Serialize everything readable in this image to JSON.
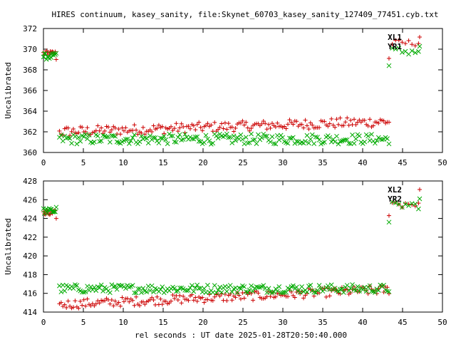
{
  "title": "HIRES continuum, kasey_sanity, file:Skynet_60703_kasey_sanity_127409_77451.cyb.txt",
  "xlabel": "rel seconds : UT date 2025-01-28T20:50:40.000",
  "colors": {
    "red": "#cc0000",
    "green": "#00aa00"
  },
  "chart_data": [
    {
      "type": "scatter",
      "title": "",
      "xlabel": "",
      "ylabel": "Uncalibrated",
      "xlim": [
        0,
        50
      ],
      "ylim": [
        360,
        372
      ],
      "xticks": [
        0,
        5,
        10,
        15,
        20,
        25,
        30,
        35,
        40,
        45,
        50
      ],
      "yticks": [
        360,
        362,
        364,
        366,
        368,
        370,
        372
      ],
      "legend_position": "top-right",
      "legend": [
        {
          "name": "XL1",
          "marker": "+",
          "color": "#cc0000"
        },
        {
          "name": "YR1",
          "marker": "x",
          "color": "#00aa00"
        }
      ],
      "series": [
        {
          "name": "XL1",
          "marker": "+",
          "color": "#cc0000",
          "segments": [
            {
              "x0": 0.0,
              "x1": 1.6,
              "n": 14,
              "y_level": 369.6,
              "y_amp": 0.25,
              "y_last": 369.0
            },
            {
              "x0": 2.0,
              "x1": 43.3,
              "n": 190,
              "y_start": 362.0,
              "y_end": 363.0,
              "y_amp": 0.5
            },
            {
              "x0": 43.3,
              "x1": 47.0,
              "n": 10,
              "y_level": 370.6,
              "y_amp": 0.3,
              "y_first": 369.1
            }
          ]
        },
        {
          "name": "YR1",
          "marker": "x",
          "color": "#00aa00",
          "segments": [
            {
              "x0": 0.0,
              "x1": 1.6,
              "n": 14,
              "y_level": 369.3,
              "y_amp": 0.3,
              "y_last": 369.6
            },
            {
              "x0": 2.0,
              "x1": 43.3,
              "n": 190,
              "y_start": 361.3,
              "y_end": 361.3,
              "y_amp": 0.5
            },
            {
              "x0": 43.3,
              "x1": 47.0,
              "n": 10,
              "y_level": 369.8,
              "y_amp": 0.4,
              "y_first": 368.4
            }
          ]
        }
      ]
    },
    {
      "type": "scatter",
      "title": "",
      "xlabel": "rel seconds : UT date 2025-01-28T20:50:40.000",
      "ylabel": "Uncalibrated",
      "xlim": [
        0,
        50
      ],
      "ylim": [
        414,
        428
      ],
      "xticks": [
        0,
        5,
        10,
        15,
        20,
        25,
        30,
        35,
        40,
        45,
        50
      ],
      "yticks": [
        414,
        416,
        418,
        420,
        422,
        424,
        426,
        428
      ],
      "legend_position": "top-right",
      "legend": [
        {
          "name": "XL2",
          "marker": "+",
          "color": "#cc0000"
        },
        {
          "name": "YR2",
          "marker": "x",
          "color": "#00aa00"
        }
      ],
      "series": [
        {
          "name": "XL2",
          "marker": "+",
          "color": "#cc0000",
          "segments": [
            {
              "x0": 0.0,
              "x1": 1.6,
              "n": 14,
              "y_level": 424.5,
              "y_amp": 0.35,
              "y_last": 424.0
            },
            {
              "x0": 2.0,
              "x1": 43.3,
              "n": 190,
              "y_start": 414.8,
              "y_end": 416.4,
              "y_amp": 0.5
            },
            {
              "x0": 43.3,
              "x1": 47.0,
              "n": 10,
              "y_level": 425.6,
              "y_amp": 0.5,
              "y_first": 424.3
            }
          ]
        },
        {
          "name": "YR2",
          "marker": "x",
          "color": "#00aa00",
          "segments": [
            {
              "x0": 0.0,
              "x1": 1.6,
              "n": 14,
              "y_level": 424.8,
              "y_amp": 0.3,
              "y_last": 425.2
            },
            {
              "x0": 2.0,
              "x1": 43.3,
              "n": 190,
              "y_start": 416.5,
              "y_end": 416.5,
              "y_amp": 0.45
            },
            {
              "x0": 43.3,
              "x1": 47.0,
              "n": 10,
              "y_level": 425.4,
              "y_amp": 0.4,
              "y_first": 423.6
            }
          ]
        }
      ]
    }
  ]
}
